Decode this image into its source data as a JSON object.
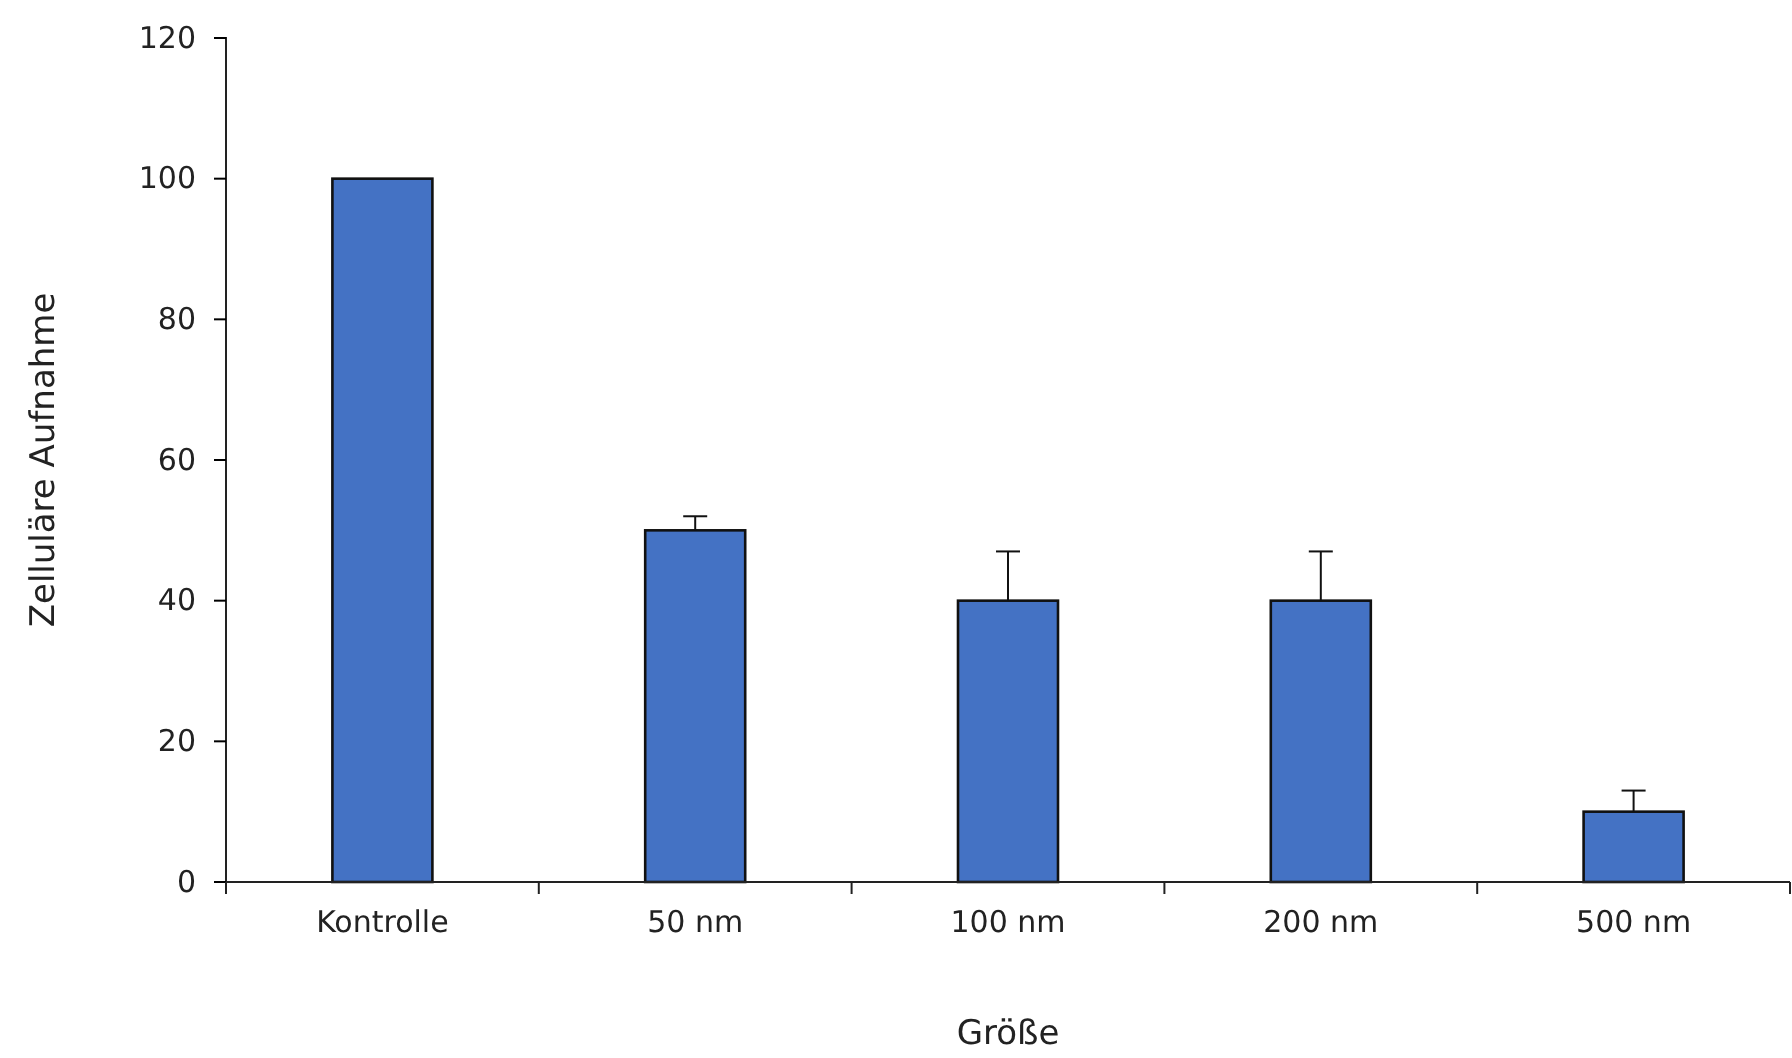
{
  "chart_data": {
    "type": "bar",
    "xlabel": "Größe",
    "ylabel": "Zelluläre Aufnahme",
    "categories": [
      "Kontrolle",
      "50 nm",
      "100 nm",
      "200 nm",
      "500 nm"
    ],
    "values": [
      100,
      50,
      40,
      40,
      10
    ],
    "errors": [
      null,
      [
        50,
        52
      ],
      [
        40,
        47
      ],
      [
        40,
        47
      ],
      [
        10,
        13
      ]
    ],
    "color": "#4472c4",
    "ylim": [
      0,
      120
    ],
    "yticks": [
      0,
      20,
      40,
      60,
      80,
      100,
      120
    ],
    "grid": false
  }
}
